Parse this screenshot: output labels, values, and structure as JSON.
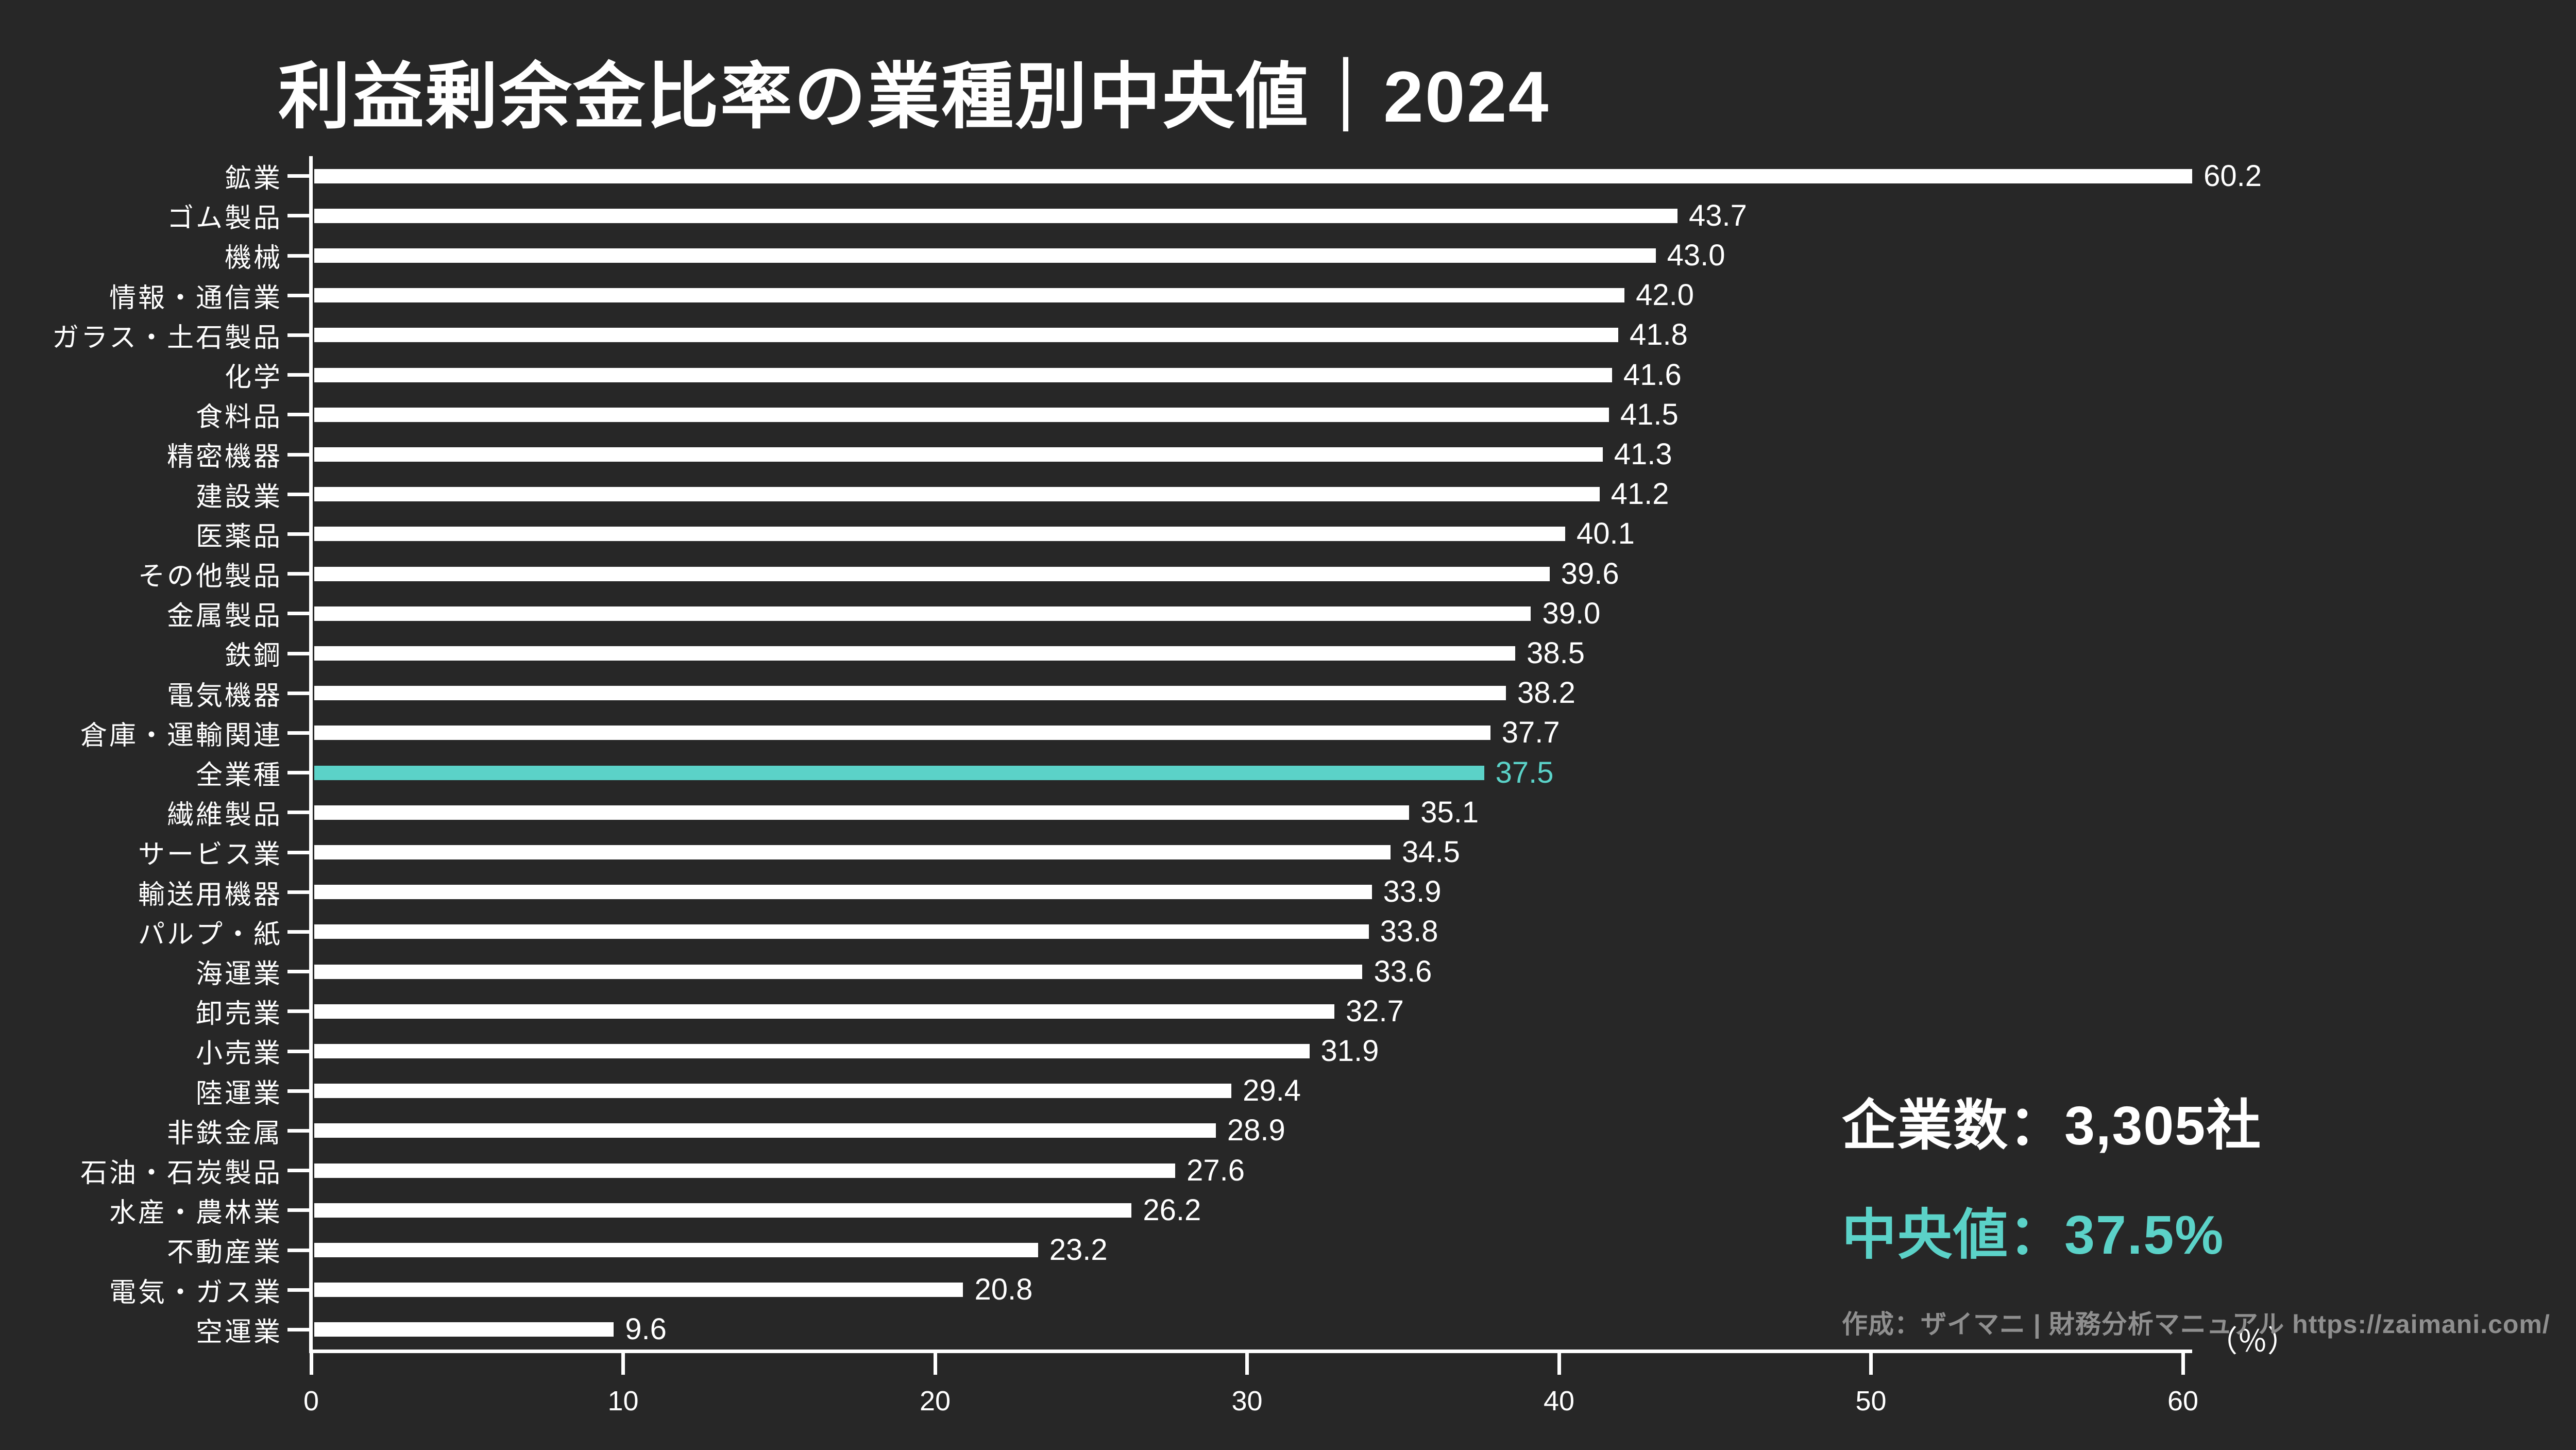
{
  "title": "利益剰余金比率の業種別中央値｜2024",
  "colors": {
    "background": "#272727",
    "bar": "#ffffff",
    "highlight": "#5bd2c8",
    "text": "#ffffff",
    "muted": "#8f8f8f"
  },
  "chart_data": {
    "type": "bar",
    "orientation": "horizontal",
    "title": "利益剰余金比率の業種別中央値｜2024",
    "categories": [
      "鉱業",
      "ゴム製品",
      "機械",
      "情報・通信業",
      "ガラス・土石製品",
      "化学",
      "食料品",
      "精密機器",
      "建設業",
      "医薬品",
      "その他製品",
      "金属製品",
      "鉄鋼",
      "電気機器",
      "倉庫・運輸関連",
      "全業種",
      "繊維製品",
      "サービス業",
      "輸送用機器",
      "パルプ・紙",
      "海運業",
      "卸売業",
      "小売業",
      "陸運業",
      "非鉄金属",
      "石油・石炭製品",
      "水産・農林業",
      "不動産業",
      "電気・ガス業",
      "空運業"
    ],
    "values": [
      60.2,
      43.7,
      43.0,
      42.0,
      41.8,
      41.6,
      41.5,
      41.3,
      41.2,
      40.1,
      39.6,
      39.0,
      38.5,
      38.2,
      37.7,
      37.5,
      35.1,
      34.5,
      33.9,
      33.8,
      33.6,
      32.7,
      31.9,
      29.4,
      28.9,
      27.6,
      26.2,
      23.2,
      20.8,
      9.6
    ],
    "highlight_category": "全業種",
    "value_decimals": 1,
    "xlabel": "（％）",
    "unit_label": "（％）",
    "xlim": [
      0,
      60
    ],
    "xticks": [
      0,
      10,
      20,
      30,
      40,
      50,
      60
    ],
    "grid": false,
    "legend": false
  },
  "annotations": {
    "companies_label": "企業数：3,305社",
    "median_label": "中央値：37.5%",
    "credit": "作成：ザイマニ | 財務分析マニュアル https://zaimani.com/"
  }
}
